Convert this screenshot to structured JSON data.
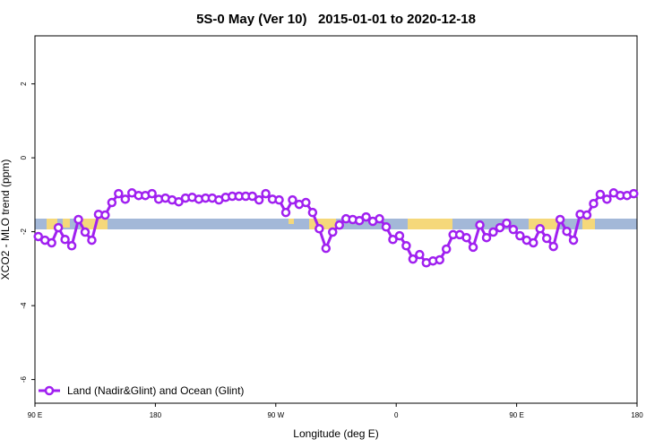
{
  "chart_data": {
    "type": "line",
    "title": "5S-0 May (Ver 10)   2015-01-01 to 2020-12-18",
    "x_label": "Longitude (deg E)",
    "y_label": "XCO2 - MLO trend (ppm)",
    "xlim": [
      90,
      540
    ],
    "xticks": [
      {
        "value": 90,
        "label": "90 E"
      },
      {
        "value": 180,
        "label": "180"
      },
      {
        "value": 270,
        "label": "90 W"
      },
      {
        "value": 360,
        "label": "0"
      },
      {
        "value": 450,
        "label": "90 E"
      },
      {
        "value": 540,
        "label": "180"
      }
    ],
    "ylim": [
      -6.64,
      3.3
    ],
    "yticks": [
      2,
      0,
      -2,
      -4,
      -6
    ],
    "legend": "bottom-left",
    "x": [
      92.5,
      97.5,
      102.5,
      107.5,
      112.5,
      117.5,
      122.5,
      127.5,
      132.5,
      137.5,
      142.5,
      147.5,
      152.5,
      157.5,
      162.5,
      167.5,
      172.5,
      177.5,
      182.5,
      187.5,
      192.5,
      197.5,
      202.5,
      207.5,
      212.5,
      217.5,
      222.5,
      227.5,
      232.5,
      237.5,
      242.5,
      247.5,
      252.5,
      257.5,
      262.5,
      267.5,
      272.5,
      277.5,
      282.5,
      287.5,
      292.5,
      297.5,
      302.5,
      307.5,
      312.5,
      317.5,
      322.5,
      327.5,
      332.5,
      337.5,
      342.5,
      347.5,
      352.5,
      357.5,
      362.5,
      367.5,
      372.5,
      377.5,
      382.5,
      387.5,
      392.5,
      397.5,
      402.5,
      407.5,
      412.5,
      417.5,
      422.5,
      427.5,
      432.5,
      437.5,
      442.5,
      447.5,
      452.5,
      457.5,
      462.5,
      467.5,
      472.5,
      477.5,
      482.5,
      487.5,
      492.5,
      497.5,
      502.5,
      507.5,
      512.5,
      517.5,
      522.5,
      527.5,
      532.5,
      537.5
    ],
    "series": [
      {
        "name": "Land (Nadir&Glint) and Ocean (Glint)",
        "color": "#a020f0",
        "values": [
          -2.13,
          -2.23,
          -2.3,
          -1.89,
          -2.21,
          -2.38,
          -1.67,
          -2.01,
          -2.23,
          -1.53,
          -1.55,
          -1.21,
          -0.97,
          -1.12,
          -0.95,
          -1.02,
          -1.02,
          -0.97,
          -1.12,
          -1.09,
          -1.14,
          -1.19,
          -1.09,
          -1.07,
          -1.12,
          -1.09,
          -1.09,
          -1.14,
          -1.07,
          -1.04,
          -1.04,
          -1.04,
          -1.04,
          -1.14,
          -0.97,
          -1.12,
          -1.14,
          -1.48,
          -1.14,
          -1.26,
          -1.21,
          -1.48,
          -1.92,
          -2.45,
          -2.01,
          -1.82,
          -1.65,
          -1.67,
          -1.7,
          -1.6,
          -1.72,
          -1.65,
          -1.87,
          -2.21,
          -2.11,
          -2.38,
          -2.74,
          -2.62,
          -2.84,
          -2.79,
          -2.76,
          -2.47,
          -2.08,
          -2.08,
          -2.16,
          -2.42,
          -1.82,
          -2.16,
          -2.01,
          -1.89,
          -1.77,
          -1.94,
          -2.11,
          -2.23,
          -2.3,
          -1.92,
          -2.18,
          -2.4,
          -1.67,
          -1.99,
          -2.23,
          -1.53,
          -1.55,
          -1.24,
          -0.99,
          -1.12,
          -0.95,
          -1.02,
          -1.02,
          -0.97
        ]
      }
    ]
  }
}
